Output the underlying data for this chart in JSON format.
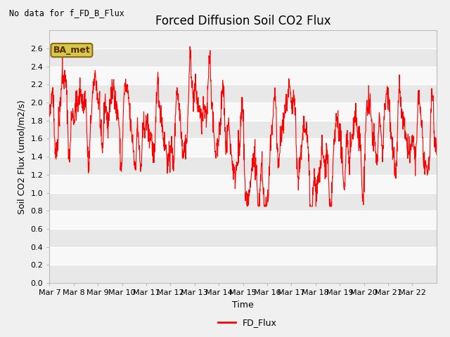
{
  "title": "Forced Diffusion Soil CO2 Flux",
  "no_data_text": "No data for f_FD_B_Flux",
  "xlabel": "Time",
  "ylabel_display": "Soil CO2 Flux (umol/m2/s)",
  "ylim": [
    0.0,
    2.8
  ],
  "yticks": [
    0.0,
    0.2,
    0.4,
    0.6,
    0.8,
    1.0,
    1.2,
    1.4,
    1.6,
    1.8,
    2.0,
    2.2,
    2.4,
    2.6
  ],
  "line_color": "#ff0000",
  "line_width": 0.8,
  "legend_label": "FD_Flux",
  "site_label": "BA_met",
  "bg_color": "#f0f0f0",
  "grid_color": "#ffffff",
  "alt_band_color": "#e8e8e8",
  "title_fontsize": 12,
  "axis_label_fontsize": 9,
  "tick_fontsize": 8,
  "num_days": 16,
  "seed": 42,
  "x_tick_labels": [
    "Mar 7",
    "Mar 8",
    "Mar 9",
    "Mar 10",
    "Mar 11",
    "Mar 12",
    "Mar 13",
    "Mar 14",
    "Mar 15",
    "Mar 16",
    "Mar 17",
    "Mar 18",
    "Mar 19",
    "Mar 20",
    "Mar 21",
    "Mar 22"
  ]
}
